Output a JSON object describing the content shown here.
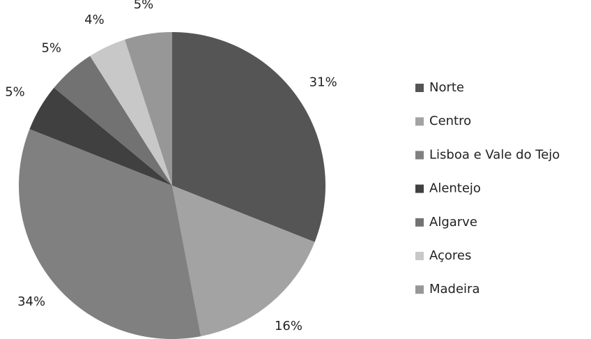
{
  "chart_data": {
    "type": "pie",
    "categories": [
      "Norte",
      "Centro",
      "Lisboa e Vale do Tejo",
      "Alentejo",
      "Algarve",
      "Açores",
      "Madeira"
    ],
    "values": [
      31,
      16,
      34,
      5,
      5,
      4,
      5
    ],
    "value_labels": [
      "31%",
      "16%",
      "34%",
      "5%",
      "5%",
      "4%",
      "5%"
    ],
    "colors": [
      "#555555",
      "#a3a3a3",
      "#808080",
      "#404040",
      "#727272",
      "#c8c8c8",
      "#979797"
    ],
    "legend": "right"
  }
}
